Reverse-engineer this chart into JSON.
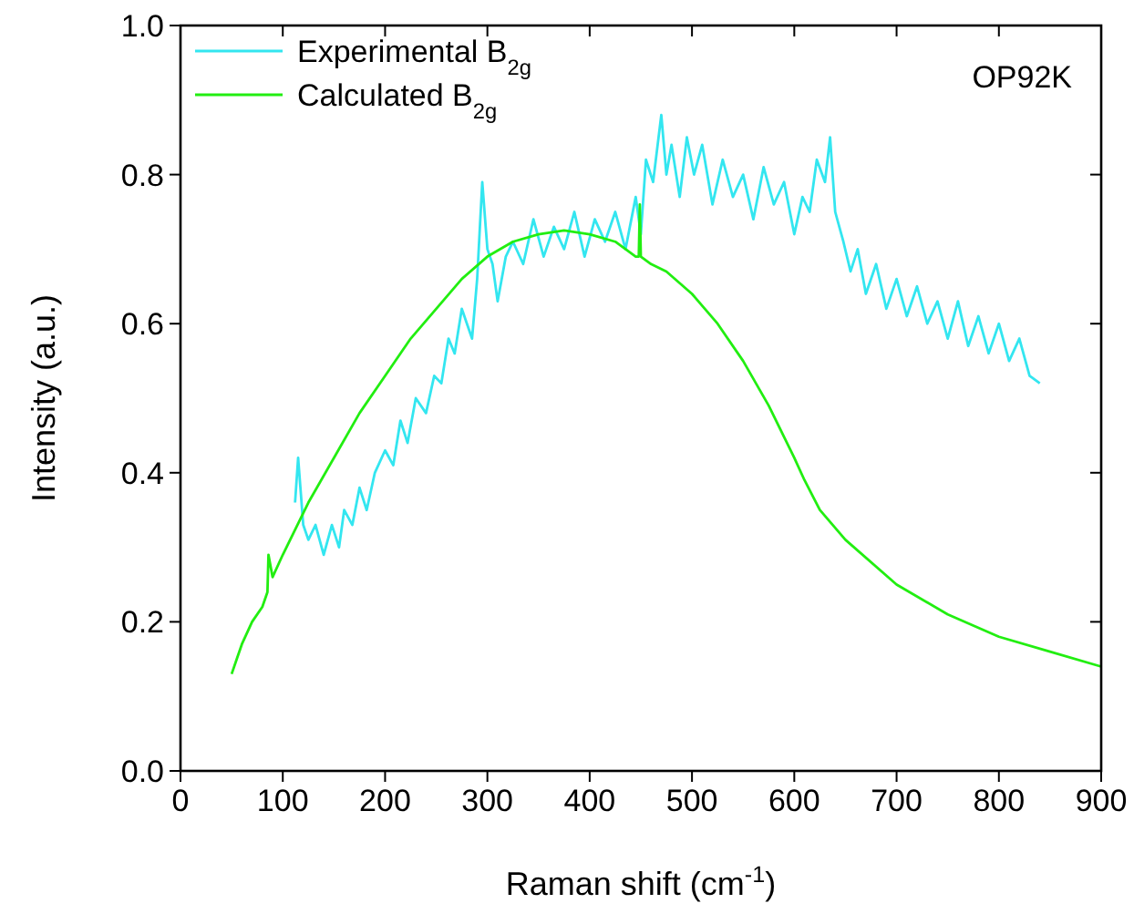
{
  "chart_data": {
    "type": "line",
    "xlabel": "Raman shift (cm$^{-1}$)",
    "ylabel": "Intensity (a.u.)",
    "annotations": [
      "OP92K"
    ],
    "xlim": [
      0,
      900
    ],
    "ylim": [
      0,
      1
    ],
    "xticks": [
      0,
      100,
      200,
      300,
      400,
      500,
      600,
      700,
      800,
      900
    ],
    "yticks": [
      {
        "value": 0,
        "label": "0.0"
      },
      0.2,
      0.4,
      0.6,
      0.8,
      {
        "value": 1,
        "label": "1.0"
      }
    ],
    "grid": false,
    "legend": "top left",
    "marker": "none",
    "line_style": "solid",
    "series": [
      {
        "name": "Experimental B$_{2g}$",
        "color": "#33e6f0",
        "x": [
          112,
          115,
          120,
          125,
          132,
          140,
          148,
          155,
          160,
          168,
          175,
          182,
          190,
          200,
          208,
          215,
          222,
          230,
          240,
          248,
          255,
          262,
          268,
          275,
          280,
          285,
          290,
          295,
          300,
          305,
          310,
          318,
          325,
          335,
          345,
          355,
          365,
          375,
          385,
          395,
          405,
          415,
          425,
          435,
          445,
          450,
          455,
          462,
          470,
          475,
          480,
          488,
          495,
          502,
          510,
          520,
          530,
          540,
          550,
          560,
          570,
          580,
          590,
          600,
          608,
          615,
          622,
          630,
          635,
          640,
          648,
          655,
          662,
          670,
          680,
          690,
          700,
          710,
          720,
          730,
          740,
          750,
          760,
          770,
          780,
          790,
          800,
          810,
          820,
          830,
          840
        ],
        "values": [
          0.36,
          0.42,
          0.33,
          0.31,
          0.33,
          0.29,
          0.33,
          0.3,
          0.35,
          0.33,
          0.38,
          0.35,
          0.4,
          0.43,
          0.41,
          0.47,
          0.44,
          0.5,
          0.48,
          0.53,
          0.52,
          0.58,
          0.56,
          0.62,
          0.6,
          0.58,
          0.66,
          0.79,
          0.7,
          0.68,
          0.63,
          0.69,
          0.71,
          0.68,
          0.74,
          0.69,
          0.73,
          0.7,
          0.75,
          0.69,
          0.74,
          0.71,
          0.75,
          0.7,
          0.77,
          0.72,
          0.82,
          0.79,
          0.88,
          0.8,
          0.84,
          0.77,
          0.85,
          0.8,
          0.84,
          0.76,
          0.82,
          0.77,
          0.8,
          0.74,
          0.81,
          0.76,
          0.79,
          0.72,
          0.77,
          0.75,
          0.82,
          0.79,
          0.85,
          0.75,
          0.71,
          0.67,
          0.7,
          0.64,
          0.68,
          0.62,
          0.66,
          0.61,
          0.65,
          0.6,
          0.63,
          0.58,
          0.63,
          0.57,
          0.61,
          0.56,
          0.6,
          0.55,
          0.58,
          0.53,
          0.52
        ]
      },
      {
        "name": "Calculated B$_{2g}$",
        "color": "#22ee11",
        "x": [
          50,
          55,
          60,
          70,
          80,
          85,
          86,
          90,
          100,
          125,
          150,
          175,
          200,
          225,
          250,
          275,
          300,
          325,
          350,
          375,
          400,
          425,
          445,
          448,
          449,
          450,
          460,
          475,
          500,
          525,
          550,
          575,
          600,
          610,
          625,
          650,
          700,
          750,
          800,
          850,
          900
        ],
        "values": [
          0.13,
          0.15,
          0.17,
          0.2,
          0.22,
          0.24,
          0.29,
          0.26,
          0.29,
          0.36,
          0.42,
          0.48,
          0.53,
          0.58,
          0.62,
          0.66,
          0.69,
          0.71,
          0.72,
          0.725,
          0.72,
          0.71,
          0.69,
          0.69,
          0.76,
          0.69,
          0.68,
          0.67,
          0.64,
          0.6,
          0.55,
          0.49,
          0.42,
          0.39,
          0.35,
          0.31,
          0.25,
          0.21,
          0.18,
          0.16,
          0.14
        ]
      }
    ]
  }
}
